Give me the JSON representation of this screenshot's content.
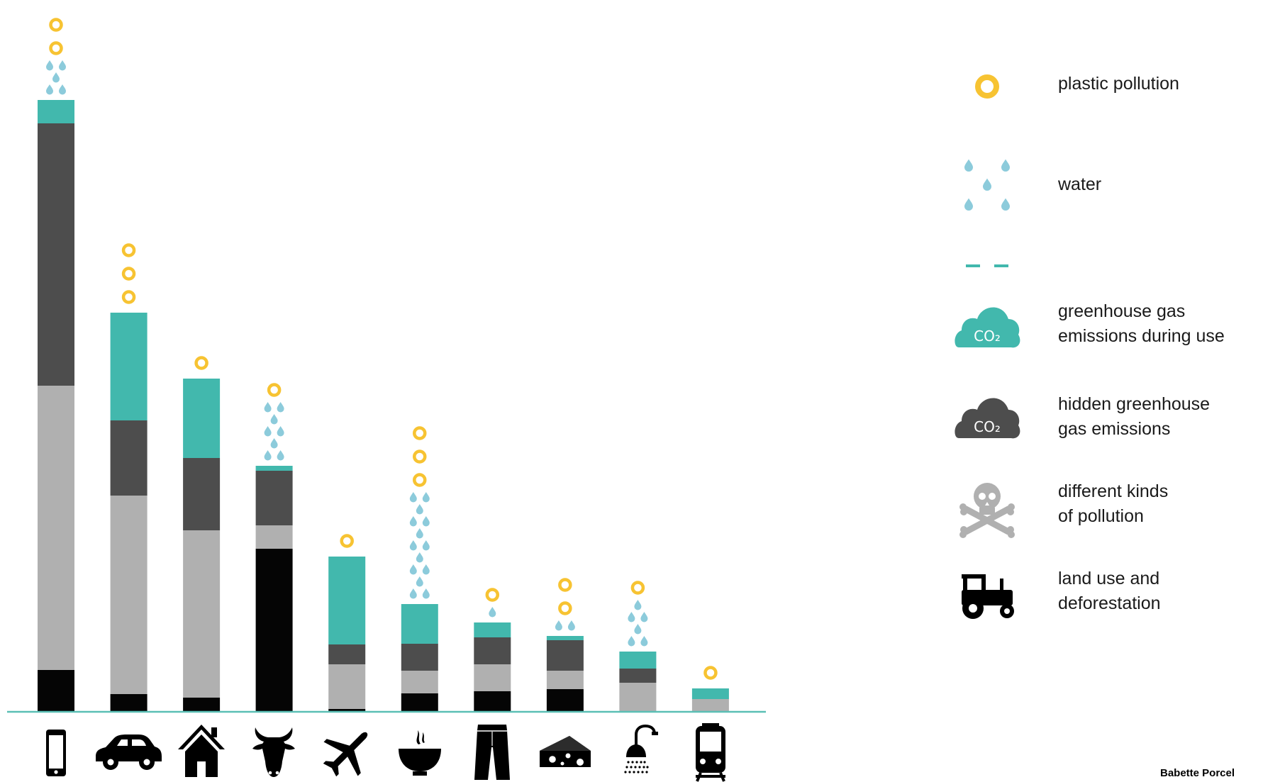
{
  "chart_data": {
    "type": "bar",
    "stacked": true,
    "categories": [
      "smartphone",
      "car",
      "house",
      "cow",
      "airplane",
      "bowl of food",
      "jeans",
      "cheese",
      "shower",
      "train"
    ],
    "category_icons": [
      "smartphone-icon",
      "car-icon",
      "house-icon",
      "cow-icon",
      "airplane-icon",
      "bowl-icon",
      "jeans-icon",
      "cheese-icon",
      "shower-icon",
      "train-icon"
    ],
    "series": [
      {
        "key": "land",
        "color": "#050505",
        "values": [
          58,
          24,
          19,
          229,
          3,
          25,
          28,
          31,
          0,
          0
        ]
      },
      {
        "key": "pollution",
        "color": "#b0b0b0",
        "values": [
          401,
          280,
          236,
          33,
          63,
          32,
          38,
          26,
          40,
          17
        ]
      },
      {
        "key": "hidden_ghg",
        "color": "#4d4d4d",
        "values": [
          370,
          106,
          102,
          77,
          28,
          38,
          38,
          43,
          20,
          0
        ]
      },
      {
        "key": "use_ghg",
        "color": "#42b8ad",
        "values": [
          33,
          152,
          112,
          7,
          124,
          56,
          21,
          6,
          24,
          15
        ]
      }
    ],
    "water_drops": [
      5,
      0,
      0,
      8,
      0,
      14,
      1,
      2,
      6,
      0
    ],
    "plastic_rings": [
      2,
      3,
      1,
      1,
      1,
      3,
      1,
      2,
      1,
      1
    ],
    "legend": [
      {
        "icon": "plastic-ring-icon",
        "label_lines": [
          "plastic pollution"
        ]
      },
      {
        "icon": "water-drops-icon",
        "label_lines": [
          "water"
        ]
      },
      {
        "icon": "dashes-icon",
        "label_lines": []
      },
      {
        "icon": "co2-cloud-teal-icon",
        "label_lines": [
          "greenhouse gas",
          "emissions during use"
        ]
      },
      {
        "icon": "co2-cloud-dark-icon",
        "label_lines": [
          "hidden greenhouse",
          "gas emissions"
        ]
      },
      {
        "icon": "skull-crossbones-icon",
        "label_lines": [
          "different kinds",
          "of pollution"
        ]
      },
      {
        "icon": "tractor-icon",
        "label_lines": [
          "land use and",
          "deforestation"
        ]
      }
    ],
    "colors": {
      "use_ghg": "#42b8ad",
      "hidden_ghg": "#4d4d4d",
      "pollution": "#b0b0b0",
      "land": "#050505",
      "water": "#8ccbdb",
      "plastic": "#f7c332",
      "baseline": "#5bbfb5"
    },
    "title": "",
    "xlabel": "",
    "ylabel": "",
    "grid": false,
    "legend_placement": "right"
  },
  "legend_text": {
    "plastic": "plastic pollution",
    "water": "water",
    "use_ghg_1": "greenhouse gas",
    "use_ghg_2": "emissions during use",
    "hidden_ghg_1": "hidden greenhouse",
    "hidden_ghg_2": "gas emissions",
    "pollution_1": "different kinds",
    "pollution_2": "of pollution",
    "land_1": "land use and",
    "land_2": "deforestation",
    "co2_text": "CO₂"
  },
  "credit": "Babette Porcel"
}
